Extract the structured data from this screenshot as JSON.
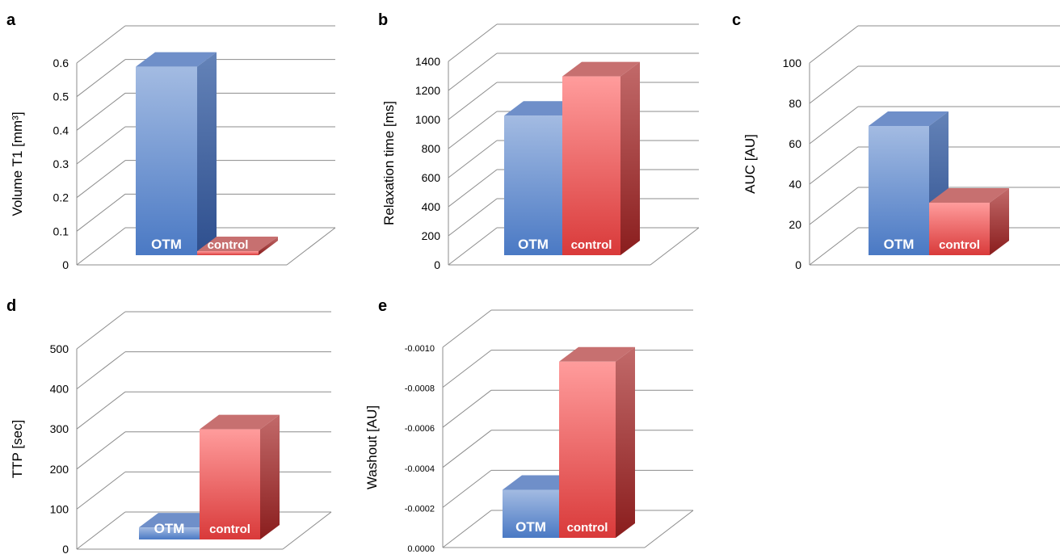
{
  "chart_data": [
    {
      "panel": "a",
      "type": "bar",
      "categories": [
        "OTM",
        "control"
      ],
      "values": [
        0.56,
        0.01
      ],
      "ylabel": "Volume T1 [mm³]",
      "ylim": [
        0,
        0.6
      ],
      "yticks": [
        "0",
        "0.1",
        "0.2",
        "0.3",
        "0.4",
        "0.5",
        "0.6"
      ],
      "grid": true,
      "legend": "none",
      "colors": {
        "OTM": "#5b86c8",
        "control": "#e05555"
      }
    },
    {
      "panel": "b",
      "type": "bar",
      "categories": [
        "OTM",
        "control"
      ],
      "values": [
        960,
        1230
      ],
      "ylabel": "Relaxation time [ms]",
      "ylim": [
        0,
        1400
      ],
      "yticks": [
        "0",
        "200",
        "400",
        "600",
        "800",
        "1000",
        "1200",
        "1400"
      ],
      "grid": true,
      "legend": "none",
      "colors": {
        "OTM": "#5b86c8",
        "control": "#e05555"
      }
    },
    {
      "panel": "c",
      "type": "bar",
      "categories": [
        "OTM",
        "control"
      ],
      "values": [
        64,
        26
      ],
      "ylabel": "AUC [AU]",
      "ylim": [
        0,
        100
      ],
      "yticks": [
        "0",
        "20",
        "40",
        "60",
        "80",
        "100"
      ],
      "grid": true,
      "legend": "none",
      "colors": {
        "OTM": "#5b86c8",
        "control": "#e05555"
      }
    },
    {
      "panel": "d",
      "type": "bar",
      "categories": [
        "OTM",
        "control"
      ],
      "values": [
        30,
        275
      ],
      "ylabel": "TTP [sec]",
      "ylim": [
        0,
        500
      ],
      "yticks": [
        "0",
        "100",
        "200",
        "300",
        "400",
        "500"
      ],
      "grid": true,
      "legend": "none",
      "colors": {
        "OTM": "#5b86c8",
        "control": "#e05555"
      }
    },
    {
      "panel": "e",
      "type": "bar",
      "categories": [
        "OTM",
        "control"
      ],
      "values": [
        -0.00024,
        -0.00088
      ],
      "ylabel": "Washout [AU]",
      "ylim": [
        0,
        -0.001
      ],
      "yticks": [
        "0.0000",
        "-0.0002",
        "-0.0004",
        "-0.0006",
        "-0.0008",
        "-0.0010"
      ],
      "grid": true,
      "legend": "none",
      "colors": {
        "OTM": "#5b86c8",
        "control": "#e05555"
      }
    }
  ]
}
